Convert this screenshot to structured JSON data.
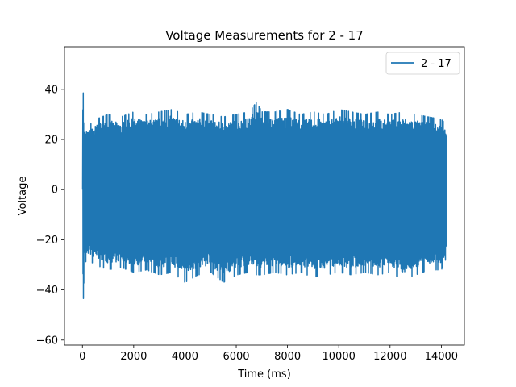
{
  "chart_data": {
    "type": "line",
    "title": "Voltage Measurements for 2 - 17",
    "xlabel": "Time (ms)",
    "ylabel": "Voltage",
    "xlim": [
      -700,
      14900
    ],
    "ylim": [
      -62,
      57
    ],
    "xticks": [
      0,
      2000,
      4000,
      6000,
      8000,
      10000,
      12000,
      14000
    ],
    "xtick_labels": [
      "0",
      "2000",
      "4000",
      "6000",
      "8000",
      "10000",
      "12000",
      "14000"
    ],
    "yticks": [
      -60,
      -40,
      -20,
      0,
      20,
      40
    ],
    "ytick_labels": [
      "−60",
      "−40",
      "−20",
      "0",
      "20",
      "40"
    ],
    "grid": false,
    "legend": "top-right",
    "series": [
      {
        "name": "2 - 17",
        "color": "#1f77b4",
        "x_range": [
          0,
          14200
        ],
        "envelope": {
          "x": [
            0,
            20,
            40,
            60,
            100,
            200,
            500,
            1000,
            1500,
            2000,
            2500,
            3000,
            3500,
            4000,
            4500,
            5000,
            5500,
            6000,
            6500,
            6800,
            7000,
            7500,
            8000,
            8500,
            9000,
            9500,
            10000,
            10500,
            11000,
            11500,
            12000,
            12500,
            13000,
            13500,
            14000,
            14200
          ],
          "max": [
            0,
            52,
            39,
            25,
            26,
            25,
            28,
            30,
            29,
            31,
            30,
            31,
            32,
            30,
            31,
            30,
            29,
            30,
            31,
            35,
            31,
            31,
            32,
            30,
            31,
            30,
            32,
            31,
            30,
            31,
            30,
            31,
            30,
            29,
            28,
            26
          ],
          "min": [
            0,
            -56,
            -50,
            -30,
            -29,
            -28,
            -30,
            -32,
            -31,
            -33,
            -32,
            -34,
            -33,
            -37,
            -34,
            -33,
            -37,
            -34,
            -33,
            -34,
            -34,
            -33,
            -34,
            -33,
            -35,
            -34,
            -33,
            -34,
            -33,
            -34,
            -33,
            -36,
            -34,
            -32,
            -32,
            -27
          ]
        }
      }
    ]
  }
}
